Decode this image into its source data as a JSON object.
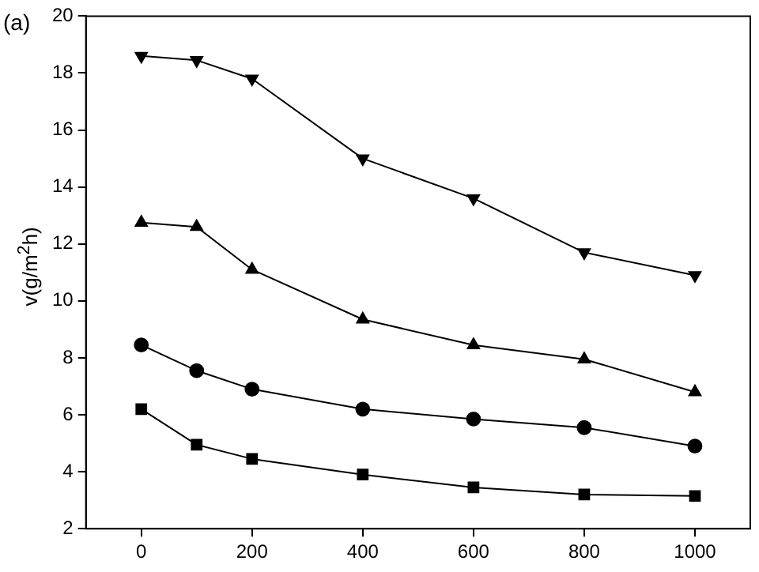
{
  "chart_data": {
    "type": "line",
    "ylabel": "v(g/m$^{2}$h)",
    "annotations": [
      "(a)"
    ],
    "x": [
      0,
      100,
      200,
      400,
      600,
      800,
      1000
    ],
    "series": [
      {
        "color": "#000000",
        "marker": "square",
        "values": [
          6.2,
          4.95,
          4.45,
          3.9,
          3.45,
          3.2,
          3.15
        ]
      },
      {
        "color": "#000000",
        "marker": "circle",
        "values": [
          8.45,
          7.55,
          6.9,
          6.2,
          5.85,
          5.55,
          4.9
        ]
      },
      {
        "color": "#000000",
        "marker": "triangle",
        "values": [
          12.75,
          12.6,
          11.1,
          9.35,
          8.45,
          7.95,
          6.8
        ]
      },
      {
        "color": "#000000",
        "marker": "triangle-down",
        "values": [
          18.6,
          18.45,
          17.8,
          15.0,
          13.6,
          11.7,
          10.9
        ]
      }
    ],
    "xlim": [
      -100,
      1100
    ],
    "xticks": [
      0,
      200,
      400,
      600,
      800,
      1000
    ],
    "ylim": [
      2,
      20
    ],
    "yticks": [
      2,
      4,
      6,
      8,
      10,
      12,
      14,
      16,
      18,
      20
    ],
    "grid": false,
    "legend": false,
    "line_style": "solid"
  }
}
